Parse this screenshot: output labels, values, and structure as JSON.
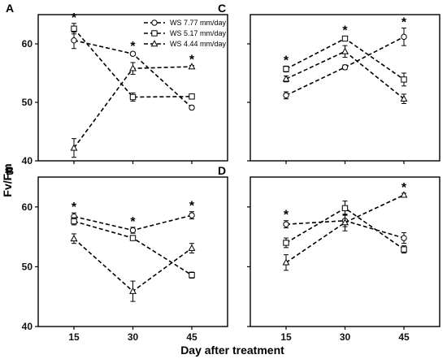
{
  "figure": {
    "ylabel": "Fv/Fm",
    "xlabel": "Day after treatment"
  },
  "legend": [
    {
      "label": "WS 7.77 mm/day",
      "marker": "circle"
    },
    {
      "label": "WS 5.17 mm/day",
      "marker": "square"
    },
    {
      "label": "WS 4.44 mm/day",
      "marker": "triangle"
    }
  ],
  "star": "*",
  "chart_data": [
    {
      "panel": "A",
      "type": "line",
      "x": [
        15,
        30,
        45
      ],
      "ylim": [
        40,
        65
      ],
      "yticks": [
        40,
        50,
        60
      ],
      "series": [
        {
          "name": "WS 7.77 mm/day",
          "marker": "circle",
          "values": [
            60.6,
            58.3,
            49.1
          ],
          "err": [
            1.4,
            0.3,
            0.3
          ]
        },
        {
          "name": "WS 5.17 mm/day",
          "marker": "square",
          "values": [
            62.6,
            50.9,
            51.0
          ],
          "err": [
            0.9,
            0.7,
            0.2
          ]
        },
        {
          "name": "WS 4.44 mm/day",
          "marker": "triangle",
          "values": [
            42.2,
            55.8,
            56.1
          ],
          "err": [
            1.6,
            1.0,
            0.2
          ]
        }
      ],
      "significant": [
        true,
        true,
        true
      ]
    },
    {
      "panel": "B",
      "type": "line",
      "x": [
        15,
        30,
        45
      ],
      "ylim": [
        40,
        65
      ],
      "yticks": [
        40,
        50,
        60
      ],
      "series": [
        {
          "name": "WS 7.77 mm/day",
          "marker": "circle",
          "values": [
            58.4,
            56.1,
            58.6
          ],
          "err": [
            0.6,
            0.5,
            0.6
          ]
        },
        {
          "name": "WS 5.17 mm/day",
          "marker": "square",
          "values": [
            57.6,
            54.8,
            48.6
          ],
          "err": [
            0.6,
            0.3,
            0.5
          ]
        },
        {
          "name": "WS 4.44 mm/day",
          "marker": "triangle",
          "values": [
            54.7,
            45.9,
            53.1
          ],
          "err": [
            0.8,
            1.7,
            0.8
          ]
        }
      ],
      "significant": [
        true,
        true,
        true
      ]
    },
    {
      "panel": "C",
      "type": "line",
      "x": [
        15,
        30,
        45
      ],
      "ylim": [
        40,
        65
      ],
      "yticks": [
        40,
        50,
        60
      ],
      "series": [
        {
          "name": "WS 7.77 mm/day",
          "marker": "circle",
          "values": [
            51.2,
            56.0,
            61.2
          ],
          "err": [
            0.6,
            0.4,
            1.5
          ]
        },
        {
          "name": "WS 5.17 mm/day",
          "marker": "square",
          "values": [
            55.7,
            60.9,
            53.9
          ],
          "err": [
            0.5,
            0.4,
            1.1
          ]
        },
        {
          "name": "WS 4.44 mm/day",
          "marker": "triangle",
          "values": [
            54.0,
            58.7,
            50.6
          ],
          "err": [
            0.5,
            1.0,
            0.8
          ]
        }
      ],
      "significant": [
        true,
        true,
        true
      ]
    },
    {
      "panel": "D",
      "type": "line",
      "x": [
        15,
        30,
        45
      ],
      "ylim": [
        40,
        65
      ],
      "yticks": [
        40,
        50,
        60
      ],
      "series": [
        {
          "name": "WS 7.77 mm/day",
          "marker": "circle",
          "values": [
            57.1,
            57.7,
            54.8
          ],
          "err": [
            0.6,
            1.0,
            0.9
          ]
        },
        {
          "name": "WS 5.17 mm/day",
          "marker": "square",
          "values": [
            54.0,
            59.8,
            52.9
          ],
          "err": [
            0.8,
            1.2,
            0.6
          ]
        },
        {
          "name": "WS 4.44 mm/day",
          "marker": "triangle",
          "values": [
            50.7,
            57.4,
            62.0
          ],
          "err": [
            1.3,
            1.4,
            0.3
          ]
        }
      ],
      "significant": [
        true,
        false,
        true
      ]
    }
  ]
}
